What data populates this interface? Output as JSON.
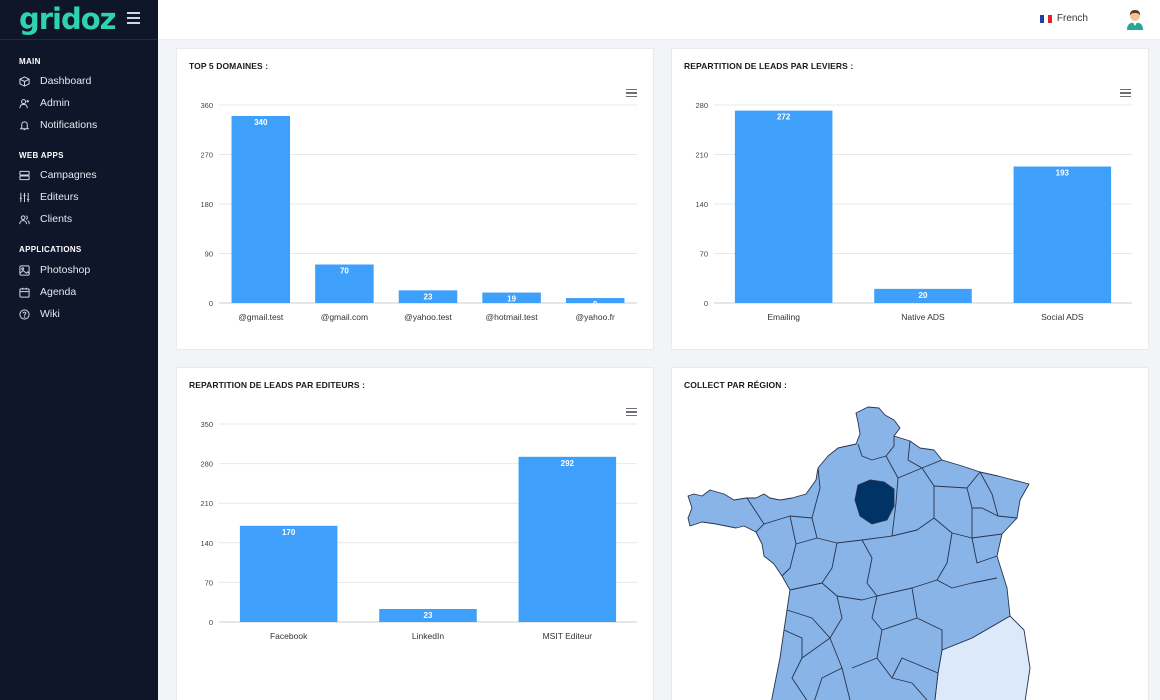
{
  "app": {
    "logo": "gridoz"
  },
  "sidebar": {
    "sections": [
      {
        "title": "MAIN",
        "items": [
          {
            "label": "Dashboard",
            "icon": "cube-icon"
          },
          {
            "label": "Admin",
            "icon": "user-plus-icon"
          },
          {
            "label": "Notifications",
            "icon": "bell-icon"
          }
        ]
      },
      {
        "title": "WEB APPS",
        "items": [
          {
            "label": "Campagnes",
            "icon": "server-icon"
          },
          {
            "label": "Editeurs",
            "icon": "sliders-icon"
          },
          {
            "label": "Clients",
            "icon": "users-icon"
          }
        ]
      },
      {
        "title": "APPLICATIONS",
        "items": [
          {
            "label": "Photoshop",
            "icon": "image-icon"
          },
          {
            "label": "Agenda",
            "icon": "calendar-icon"
          },
          {
            "label": "Wiki",
            "icon": "help-circle-icon"
          }
        ]
      }
    ]
  },
  "topbar": {
    "language": "French"
  },
  "cards": {
    "top5": {
      "title": "TOP 5 DOMAINES :"
    },
    "leviers": {
      "title": "REPARTITION DE LEADS PAR LEVIERS :"
    },
    "editeurs": {
      "title": "REPARTITION DE LEADS PAR EDITEURS :"
    },
    "region": {
      "title": "COLLECT PAR RÉGION :"
    }
  },
  "colors": {
    "bar": "#3fa0fb",
    "map_fill": "#89b4e8",
    "map_highlight": "#003366",
    "map_light": "#dce9fb",
    "sidebar": "#0f1629",
    "logo_accent": "#2fd3b0"
  },
  "chart_data": [
    {
      "type": "bar",
      "title": "TOP 5 DOMAINES :",
      "categories": [
        "@gmail.test",
        "@gmail.com",
        "@yahoo.test",
        "@hotmail.test",
        "@yahoo.fr"
      ],
      "values": [
        340,
        70,
        23,
        19,
        9
      ],
      "yticks": [
        0,
        90,
        180,
        270,
        360
      ],
      "ylim": [
        0,
        360
      ]
    },
    {
      "type": "bar",
      "title": "REPARTITION DE LEADS PAR LEVIERS :",
      "categories": [
        "Emailing",
        "Native ADS",
        "Social ADS"
      ],
      "values": [
        272,
        20,
        193
      ],
      "yticks": [
        0,
        70,
        140,
        210,
        280
      ],
      "ylim": [
        0,
        280
      ]
    },
    {
      "type": "bar",
      "title": "REPARTITION DE LEADS PAR EDITEURS :",
      "categories": [
        "Facebook",
        "LinkedIn",
        "MSIT Editeur"
      ],
      "values": [
        170,
        23,
        292
      ],
      "yticks": [
        0,
        70,
        140,
        210,
        280,
        350
      ],
      "ylim": [
        0,
        350
      ]
    }
  ]
}
